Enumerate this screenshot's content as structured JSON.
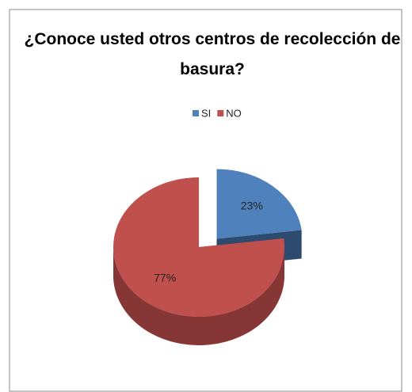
{
  "chart_data": {
    "type": "pie",
    "title": "¿Conoce usted otros centros de recolección de basura?",
    "categories": [
      "SI",
      "NO"
    ],
    "values": [
      23,
      77
    ],
    "value_labels": [
      "23%",
      "77%"
    ],
    "colors": [
      "#4f81bd",
      "#c0504d"
    ],
    "legend": "top",
    "exploded": [
      0
    ]
  }
}
